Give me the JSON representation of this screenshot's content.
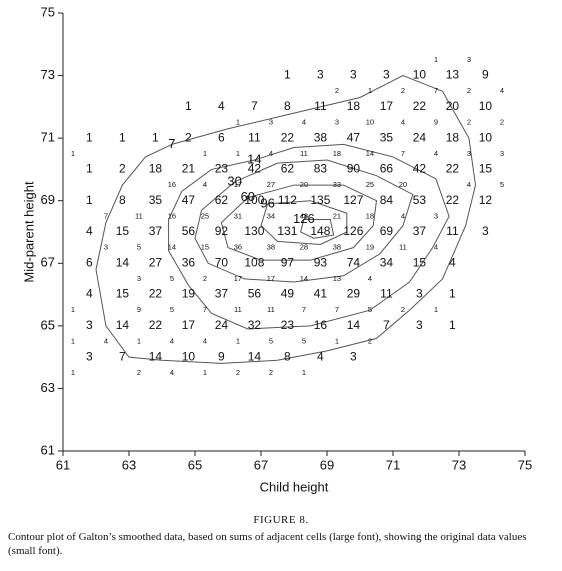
{
  "chart_data": {
    "type": "contour",
    "xlabel": "Child height",
    "ylabel": "Mid-parent height",
    "xlim": [
      61,
      75
    ],
    "ylim": [
      61,
      75
    ],
    "xticks": [
      61,
      63,
      65,
      67,
      69,
      71,
      73,
      75
    ],
    "yticks": [
      61,
      63,
      65,
      67,
      69,
      71,
      73,
      75
    ],
    "line_color": "#555555",
    "large_labels": [
      {
        "y": 73,
        "x": [
          67.8,
          68.8,
          69.8,
          70.8,
          71.8,
          72.8,
          73.8
        ],
        "values": [
          1,
          3,
          3,
          3,
          10,
          13,
          9
        ]
      },
      {
        "y": 72,
        "x": [
          64.8,
          65.8,
          66.8,
          67.8,
          68.8,
          69.8,
          70.8,
          71.8,
          72.8,
          73.8
        ],
        "values": [
          1,
          4,
          7,
          8,
          11,
          18,
          17,
          22,
          20,
          10
        ]
      },
      {
        "y": 71,
        "x": [
          61.8,
          62.8,
          63.8,
          64.8,
          65.8,
          66.8,
          67.8,
          68.8,
          69.8,
          70.8,
          71.8,
          72.8,
          73.8
        ],
        "values": [
          1,
          1,
          1,
          2,
          6,
          11,
          22,
          38,
          47,
          35,
          24,
          18,
          10
        ]
      },
      {
        "y": 70,
        "x": [
          61.8,
          62.8,
          63.8,
          64.8,
          65.8,
          66.8,
          67.8,
          68.8,
          69.8,
          70.8,
          71.8,
          72.8,
          73.8
        ],
        "values": [
          1,
          2,
          18,
          21,
          23,
          42,
          62,
          83,
          90,
          66,
          42,
          22,
          15
        ]
      },
      {
        "y": 69,
        "x": [
          61.8,
          62.8,
          63.8,
          64.8,
          65.8,
          66.8,
          67.8,
          68.8,
          69.8,
          70.8,
          71.8,
          72.8,
          73.8
        ],
        "values": [
          1,
          8,
          35,
          47,
          62,
          100,
          112,
          135,
          127,
          84,
          53,
          22,
          12
        ]
      },
      {
        "y": 68,
        "x": [
          61.8,
          62.8,
          63.8,
          64.8,
          65.8,
          66.8,
          67.8,
          68.8,
          69.8,
          70.8,
          71.8,
          72.8,
          73.8
        ],
        "values": [
          4,
          15,
          37,
          56,
          92,
          130,
          131,
          148,
          126,
          69,
          37,
          11,
          3
        ]
      },
      {
        "y": 67,
        "x": [
          61.8,
          62.8,
          63.8,
          64.8,
          65.8,
          66.8,
          67.8,
          68.8,
          69.8,
          70.8,
          71.8,
          72.8
        ],
        "values": [
          6,
          14,
          27,
          36,
          70,
          108,
          97,
          93,
          74,
          34,
          15,
          4
        ]
      },
      {
        "y": 66,
        "x": [
          61.8,
          62.8,
          63.8,
          64.8,
          65.8,
          66.8,
          67.8,
          68.8,
          69.8,
          70.8,
          71.8,
          72.8
        ],
        "values": [
          4,
          15,
          22,
          19,
          37,
          56,
          49,
          41,
          29,
          11,
          3,
          1
        ]
      },
      {
        "y": 65,
        "x": [
          61.8,
          62.8,
          63.8,
          64.8,
          65.8,
          66.8,
          67.8,
          68.8,
          69.8,
          70.8,
          71.8,
          72.8
        ],
        "values": [
          3,
          14,
          22,
          17,
          24,
          32,
          23,
          16,
          14,
          7,
          3,
          1
        ]
      },
      {
        "y": 64,
        "x": [
          61.8,
          62.8,
          63.8,
          64.8,
          65.8,
          66.8,
          67.8,
          68.8,
          69.8
        ],
        "values": [
          3,
          7,
          14,
          10,
          9,
          14,
          8,
          4,
          3
        ]
      }
    ],
    "small_labels": [
      {
        "y": 73.5,
        "x": [
          72.3,
          73.3
        ],
        "values": [
          1,
          3
        ]
      },
      {
        "y": 72.5,
        "x": [
          69.3,
          70.3,
          71.3,
          72.3,
          73.3,
          74.3
        ],
        "values": [
          2,
          1,
          2,
          7,
          2,
          4
        ]
      },
      {
        "y": 71.5,
        "x": [
          66.3,
          67.3,
          68.3,
          69.3,
          70.3,
          71.3,
          72.3,
          73.3,
          74.3
        ],
        "values": [
          1,
          3,
          4,
          3,
          10,
          4,
          9,
          2,
          2
        ]
      },
      {
        "y": 70.5,
        "x": [
          61.3,
          65.3,
          66.3,
          67.3,
          68.3,
          69.3,
          70.3,
          71.3,
          72.3,
          73.3,
          74.3
        ],
        "values": [
          1,
          1,
          1,
          4,
          11,
          18,
          14,
          7,
          4,
          3,
          3
        ]
      },
      {
        "y": 69.5,
        "x": [
          64.3,
          65.3,
          66.3,
          67.3,
          68.3,
          69.3,
          70.3,
          71.3,
          73.3,
          74.3
        ],
        "values": [
          16,
          4,
          17,
          27,
          20,
          33,
          25,
          20,
          4,
          5
        ]
      },
      {
        "y": 68.5,
        "x": [
          62.3,
          63.3,
          64.3,
          65.3,
          66.3,
          67.3,
          68.3,
          69.3,
          70.3,
          71.3,
          72.3
        ],
        "values": [
          7,
          11,
          16,
          25,
          31,
          34,
          48,
          21,
          18,
          4,
          3
        ]
      },
      {
        "y": 67.5,
        "x": [
          62.3,
          63.3,
          64.3,
          65.3,
          66.3,
          67.3,
          68.3,
          69.3,
          70.3,
          71.3,
          72.3
        ],
        "values": [
          3,
          5,
          14,
          15,
          36,
          38,
          28,
          38,
          19,
          11,
          4
        ]
      },
      {
        "y": 66.5,
        "x": [
          63.3,
          64.3,
          65.3,
          66.3,
          67.3,
          68.3,
          69.3,
          70.3
        ],
        "values": [
          3,
          5,
          2,
          17,
          17,
          14,
          13,
          4
        ]
      },
      {
        "y": 65.5,
        "x": [
          61.3,
          63.3,
          64.3,
          65.3,
          66.3,
          67.3,
          68.3,
          69.3,
          70.3,
          71.3,
          72.3
        ],
        "values": [
          1,
          9,
          5,
          7,
          11,
          11,
          7,
          7,
          5,
          2,
          1
        ]
      },
      {
        "y": 64.5,
        "x": [
          61.3,
          62.3,
          63.3,
          64.3,
          65.3,
          66.3,
          67.3,
          68.3,
          69.3,
          70.3
        ],
        "values": [
          1,
          4,
          1,
          4,
          4,
          1,
          5,
          5,
          1,
          2
        ]
      },
      {
        "y": 63.5,
        "x": [
          61.3,
          63.3,
          64.3,
          65.3,
          66.3,
          67.3,
          68.3
        ],
        "values": [
          1,
          2,
          4,
          1,
          2,
          2,
          1
        ]
      }
    ],
    "contours": [
      {
        "level": 7,
        "x": [
          64.3,
          66,
          68,
          70,
          71.3,
          72.5,
          73.3,
          73.5,
          73.2,
          72.5,
          71.5,
          70.5,
          69,
          67.5,
          65.8,
          64,
          63,
          62.3,
          62,
          62.3,
          62.8,
          63.5,
          64.3
        ],
        "y": [
          70.8,
          71.3,
          71.8,
          72.3,
          73,
          72.5,
          71,
          69.5,
          68.2,
          66.5,
          65.5,
          64.6,
          64.2,
          63.9,
          63.8,
          63.9,
          64,
          65,
          66.8,
          68.3,
          69.5,
          70.4,
          70.8
        ]
      },
      {
        "level": 14,
        "x": [
          66.8,
          68,
          69.5,
          71,
          72.3,
          72.7,
          72.2,
          71.5,
          70.3,
          68.5,
          66.6,
          65.5,
          64.8,
          64.2,
          64.2,
          64.6,
          65.5,
          66.8
        ],
        "y": [
          70.3,
          70.7,
          70.8,
          70.4,
          69.7,
          68.5,
          67.5,
          66.4,
          65.5,
          65,
          64.9,
          65.4,
          66.3,
          67.4,
          68.4,
          69.3,
          70,
          70.3
        ]
      },
      {
        "level": 30,
        "x": [
          66.2,
          67.5,
          69,
          70.5,
          71.6,
          71.3,
          70.6,
          69.5,
          68,
          66.5,
          65.4,
          65,
          65.2,
          66.2
        ],
        "y": [
          69.6,
          70.2,
          70.3,
          69.8,
          69.2,
          68.2,
          67.3,
          66.6,
          66.4,
          66.5,
          67,
          67.8,
          68.7,
          69.6
        ]
      },
      {
        "level": 60,
        "x": [
          66.6,
          68,
          69.5,
          70.5,
          70.4,
          69.8,
          68.5,
          67,
          66,
          65.8,
          66.6
        ],
        "y": [
          69.1,
          69.5,
          69.5,
          69,
          68.2,
          67.5,
          67.1,
          67.1,
          67.5,
          68.3,
          69.1
        ]
      },
      {
        "level": 96,
        "x": [
          67.2,
          68.5,
          69.6,
          69.6,
          68.8,
          67.5,
          67,
          67.2
        ],
        "y": [
          68.9,
          69,
          68.6,
          68,
          67.6,
          67.7,
          68.2,
          68.9
        ]
      },
      {
        "level": 126,
        "x": [
          68.3,
          69.1,
          69.2,
          68.6,
          68.2,
          68.3
        ],
        "y": [
          68.4,
          68.4,
          67.9,
          67.8,
          68,
          68.4
        ]
      }
    ]
  },
  "caption": {
    "label": "FIGURE 8.",
    "text": "Contour plot of Galton’s smoothed data, based on sums of adjacent cells (large font), showing the original data values (small font)."
  }
}
